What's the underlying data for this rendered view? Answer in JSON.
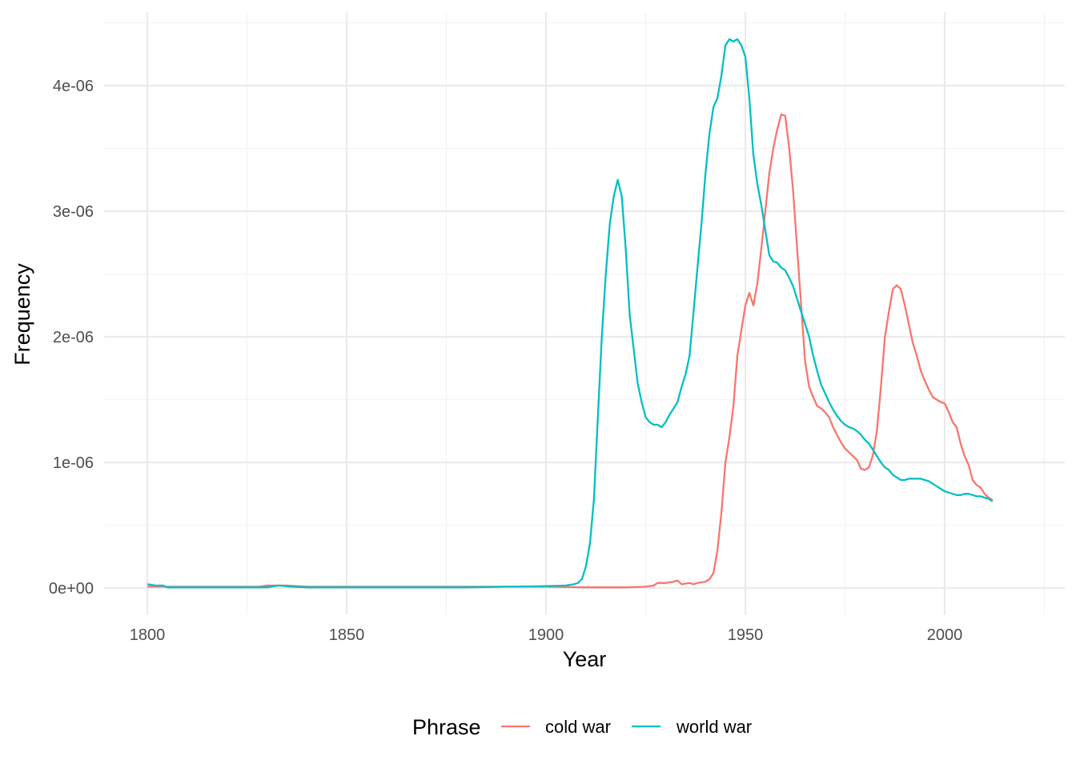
{
  "chart_data": {
    "type": "line",
    "title": "",
    "xlabel": "Year",
    "ylabel": "Frequency",
    "xlim": [
      1800,
      2019
    ],
    "ylim": [
      0,
      4.4e-06
    ],
    "x_ticks": [
      1800,
      1850,
      1900,
      1950,
      2000
    ],
    "x_tick_labels": [
      "1800",
      "1850",
      "1900",
      "1950",
      "2000"
    ],
    "y_ticks": [
      0,
      1e-06,
      2e-06,
      3e-06,
      4e-06
    ],
    "y_tick_labels": [
      "0e+00",
      "1e-06",
      "2e-06",
      "3e-06",
      "4e-06"
    ],
    "grid": true,
    "legend": {
      "title": "Phrase",
      "position": "bottom"
    },
    "series": [
      {
        "name": "cold war",
        "color": "#F8766D",
        "points": [
          [
            1800,
            1e-08
          ],
          [
            1810,
            1e-08
          ],
          [
            1820,
            1e-08
          ],
          [
            1828,
            1e-08
          ],
          [
            1830,
            2e-08
          ],
          [
            1835,
            2e-08
          ],
          [
            1840,
            1e-08
          ],
          [
            1860,
            1e-08
          ],
          [
            1880,
            1e-08
          ],
          [
            1900,
            1e-08
          ],
          [
            1910,
            5e-09
          ],
          [
            1920,
            5e-09
          ],
          [
            1925,
            1e-08
          ],
          [
            1927,
            2e-08
          ],
          [
            1928,
            4e-08
          ],
          [
            1930,
            4e-08
          ],
          [
            1932,
            5e-08
          ],
          [
            1933,
            6e-08
          ],
          [
            1934,
            3e-08
          ],
          [
            1936,
            4e-08
          ],
          [
            1937,
            3e-08
          ],
          [
            1938,
            4e-08
          ],
          [
            1940,
            5e-08
          ],
          [
            1941,
            7e-08
          ],
          [
            1942,
            1.2e-07
          ],
          [
            1943,
            3e-07
          ],
          [
            1944,
            6e-07
          ],
          [
            1945,
            1e-06
          ],
          [
            1946,
            1.2e-06
          ],
          [
            1947,
            1.45e-06
          ],
          [
            1948,
            1.85e-06
          ],
          [
            1949,
            2.05e-06
          ],
          [
            1950,
            2.25e-06
          ],
          [
            1951,
            2.35e-06
          ],
          [
            1952,
            2.25e-06
          ],
          [
            1953,
            2.42e-06
          ],
          [
            1954,
            2.7e-06
          ],
          [
            1955,
            3e-06
          ],
          [
            1956,
            3.3e-06
          ],
          [
            1957,
            3.5e-06
          ],
          [
            1958,
            3.65e-06
          ],
          [
            1959,
            3.77e-06
          ],
          [
            1960,
            3.76e-06
          ],
          [
            1961,
            3.5e-06
          ],
          [
            1962,
            3.15e-06
          ],
          [
            1963,
            2.7e-06
          ],
          [
            1964,
            2.25e-06
          ],
          [
            1965,
            1.8e-06
          ],
          [
            1966,
            1.6e-06
          ],
          [
            1967,
            1.52e-06
          ],
          [
            1968,
            1.45e-06
          ],
          [
            1969,
            1.43e-06
          ],
          [
            1970,
            1.4e-06
          ],
          [
            1971,
            1.36e-06
          ],
          [
            1972,
            1.28e-06
          ],
          [
            1973,
            1.22e-06
          ],
          [
            1974,
            1.16e-06
          ],
          [
            1975,
            1.11e-06
          ],
          [
            1976,
            1.08e-06
          ],
          [
            1977,
            1.05e-06
          ],
          [
            1978,
            1.02e-06
          ],
          [
            1979,
            9.5e-07
          ],
          [
            1980,
            9.4e-07
          ],
          [
            1981,
            9.6e-07
          ],
          [
            1982,
            1.06e-06
          ],
          [
            1983,
            1.25e-06
          ],
          [
            1984,
            1.6e-06
          ],
          [
            1985,
            2e-06
          ],
          [
            1986,
            2.2e-06
          ],
          [
            1987,
            2.38e-06
          ],
          [
            1988,
            2.41e-06
          ],
          [
            1989,
            2.38e-06
          ],
          [
            1990,
            2.25e-06
          ],
          [
            1991,
            2.1e-06
          ],
          [
            1992,
            1.95e-06
          ],
          [
            1993,
            1.85e-06
          ],
          [
            1994,
            1.73e-06
          ],
          [
            1995,
            1.65e-06
          ],
          [
            1996,
            1.58e-06
          ],
          [
            1997,
            1.52e-06
          ],
          [
            1998,
            1.5e-06
          ],
          [
            1999,
            1.48e-06
          ],
          [
            2000,
            1.47e-06
          ],
          [
            2001,
            1.4e-06
          ],
          [
            2002,
            1.32e-06
          ],
          [
            2003,
            1.28e-06
          ],
          [
            2004,
            1.15e-06
          ],
          [
            2005,
            1.05e-06
          ],
          [
            2006,
            9.8e-07
          ],
          [
            2007,
            8.6e-07
          ],
          [
            2008,
            8.2e-07
          ],
          [
            2009,
            8e-07
          ],
          [
            2010,
            7.5e-07
          ],
          [
            2011,
            7.2e-07
          ],
          [
            2012,
            7e-07
          ]
        ]
      },
      {
        "name": "world war",
        "color": "#00BFC4",
        "points": [
          [
            1800,
            3e-08
          ],
          [
            1802,
            2e-08
          ],
          [
            1804,
            2e-08
          ],
          [
            1805,
            5e-09
          ],
          [
            1810,
            5e-09
          ],
          [
            1820,
            5e-09
          ],
          [
            1830,
            5e-09
          ],
          [
            1833,
            2e-08
          ],
          [
            1836,
            1e-08
          ],
          [
            1840,
            5e-09
          ],
          [
            1860,
            5e-09
          ],
          [
            1880,
            5e-09
          ],
          [
            1890,
            1e-08
          ],
          [
            1900,
            1.5e-08
          ],
          [
            1905,
            2e-08
          ],
          [
            1907,
            3e-08
          ],
          [
            1908,
            4e-08
          ],
          [
            1909,
            7e-08
          ],
          [
            1910,
            1.7e-07
          ],
          [
            1911,
            3.5e-07
          ],
          [
            1912,
            7e-07
          ],
          [
            1913,
            1.35e-06
          ],
          [
            1914,
            2e-06
          ],
          [
            1915,
            2.5e-06
          ],
          [
            1916,
            2.9e-06
          ],
          [
            1917,
            3.12e-06
          ],
          [
            1918,
            3.25e-06
          ],
          [
            1919,
            3.12e-06
          ],
          [
            1920,
            2.7e-06
          ],
          [
            1921,
            2.17e-06
          ],
          [
            1922,
            1.9e-06
          ],
          [
            1923,
            1.63e-06
          ],
          [
            1924,
            1.48e-06
          ],
          [
            1925,
            1.36e-06
          ],
          [
            1926,
            1.32e-06
          ],
          [
            1927,
            1.3e-06
          ],
          [
            1928,
            1.3e-06
          ],
          [
            1929,
            1.28e-06
          ],
          [
            1930,
            1.32e-06
          ],
          [
            1931,
            1.38e-06
          ],
          [
            1932,
            1.43e-06
          ],
          [
            1933,
            1.48e-06
          ],
          [
            1934,
            1.6e-06
          ],
          [
            1935,
            1.7e-06
          ],
          [
            1936,
            1.85e-06
          ],
          [
            1937,
            2.2e-06
          ],
          [
            1938,
            2.55e-06
          ],
          [
            1939,
            2.9e-06
          ],
          [
            1940,
            3.3e-06
          ],
          [
            1941,
            3.62e-06
          ],
          [
            1942,
            3.83e-06
          ],
          [
            1943,
            3.9e-06
          ],
          [
            1944,
            4.08e-06
          ],
          [
            1945,
            4.32e-06
          ],
          [
            1946,
            4.37e-06
          ],
          [
            1947,
            4.35e-06
          ],
          [
            1948,
            4.37e-06
          ],
          [
            1949,
            4.32e-06
          ],
          [
            1950,
            4.23e-06
          ],
          [
            1951,
            3.9e-06
          ],
          [
            1952,
            3.45e-06
          ],
          [
            1953,
            3.22e-06
          ],
          [
            1954,
            3.05e-06
          ],
          [
            1955,
            2.85e-06
          ],
          [
            1956,
            2.65e-06
          ],
          [
            1957,
            2.6e-06
          ],
          [
            1958,
            2.59e-06
          ],
          [
            1959,
            2.55e-06
          ],
          [
            1960,
            2.53e-06
          ],
          [
            1961,
            2.47e-06
          ],
          [
            1962,
            2.4e-06
          ],
          [
            1963,
            2.3e-06
          ],
          [
            1964,
            2.2e-06
          ],
          [
            1965,
            2.1e-06
          ],
          [
            1966,
            2e-06
          ],
          [
            1967,
            1.85e-06
          ],
          [
            1968,
            1.73e-06
          ],
          [
            1969,
            1.62e-06
          ],
          [
            1970,
            1.55e-06
          ],
          [
            1971,
            1.48e-06
          ],
          [
            1972,
            1.42e-06
          ],
          [
            1973,
            1.37e-06
          ],
          [
            1974,
            1.33e-06
          ],
          [
            1975,
            1.3e-06
          ],
          [
            1976,
            1.28e-06
          ],
          [
            1977,
            1.27e-06
          ],
          [
            1978,
            1.25e-06
          ],
          [
            1979,
            1.22e-06
          ],
          [
            1980,
            1.18e-06
          ],
          [
            1981,
            1.15e-06
          ],
          [
            1982,
            1.1e-06
          ],
          [
            1983,
            1.05e-06
          ],
          [
            1984,
            1e-06
          ],
          [
            1985,
            9.6e-07
          ],
          [
            1986,
            9.4e-07
          ],
          [
            1987,
            9e-07
          ],
          [
            1988,
            8.8e-07
          ],
          [
            1989,
            8.6e-07
          ],
          [
            1990,
            8.6e-07
          ],
          [
            1991,
            8.7e-07
          ],
          [
            1992,
            8.7e-07
          ],
          [
            1993,
            8.7e-07
          ],
          [
            1994,
            8.7e-07
          ],
          [
            1995,
            8.6e-07
          ],
          [
            1996,
            8.5e-07
          ],
          [
            1997,
            8.3e-07
          ],
          [
            1998,
            8.1e-07
          ],
          [
            1999,
            7.9e-07
          ],
          [
            2000,
            7.7e-07
          ],
          [
            2001,
            7.6e-07
          ],
          [
            2002,
            7.5e-07
          ],
          [
            2003,
            7.4e-07
          ],
          [
            2004,
            7.4e-07
          ],
          [
            2005,
            7.5e-07
          ],
          [
            2006,
            7.5e-07
          ],
          [
            2007,
            7.4e-07
          ],
          [
            2008,
            7.3e-07
          ],
          [
            2009,
            7.3e-07
          ],
          [
            2010,
            7.2e-07
          ],
          [
            2011,
            7.1e-07
          ],
          [
            2012,
            6.9e-07
          ]
        ]
      }
    ]
  }
}
